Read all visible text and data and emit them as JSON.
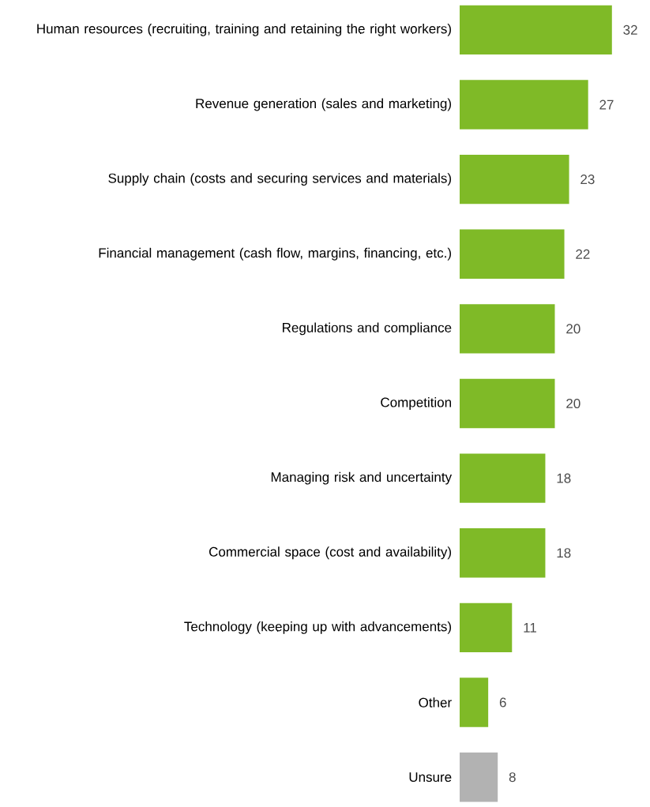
{
  "chart_data": {
    "type": "bar",
    "orientation": "horizontal",
    "data_labels": true,
    "categories": [
      "Human resources (recruiting, training and retaining the right workers)",
      "Revenue generation (sales and marketing)",
      "Supply chain (costs and securing services and materials)",
      "Financial management (cash flow, margins, financing, etc.)",
      "Regulations and compliance",
      "Competition",
      "Managing risk and uncertainty",
      "Commercial space (cost and availability)",
      "Technology (keeping up with advancements)",
      "Other",
      "Unsure"
    ],
    "values": [
      32,
      27,
      23,
      22,
      20,
      20,
      18,
      18,
      11,
      6,
      8
    ],
    "colors": [
      "#7fba27",
      "#7fba27",
      "#7fba27",
      "#7fba27",
      "#7fba27",
      "#7fba27",
      "#7fba27",
      "#7fba27",
      "#7fba27",
      "#7fba27",
      "#b2b2b2"
    ]
  }
}
